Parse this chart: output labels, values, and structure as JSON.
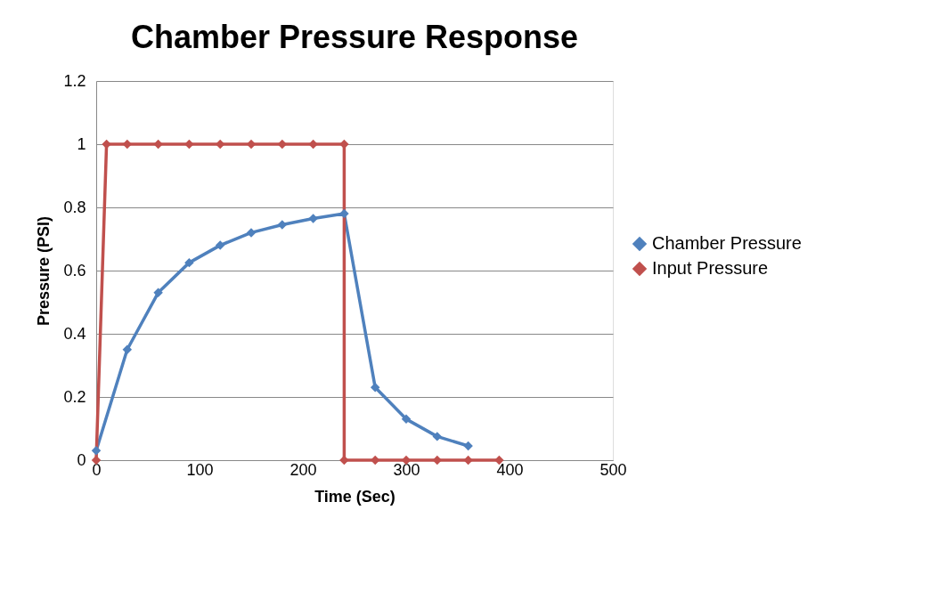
{
  "chart_data": {
    "type": "line",
    "title": "Chamber Pressure Response",
    "xlabel": "Time (Sec)",
    "ylabel": "Pressure (PSI)",
    "xlim": [
      0,
      500
    ],
    "xticks": [
      0,
      100,
      200,
      300,
      400,
      500
    ],
    "ylim": [
      0,
      1.2
    ],
    "yticks": [
      0,
      0.2,
      0.4,
      0.6,
      0.8,
      1,
      1.2
    ],
    "grid": "y",
    "legend": "right",
    "marker": "diamond",
    "line_style": "solid",
    "series": [
      {
        "name": "Chamber Pressure",
        "color": "#4f81bd",
        "x": [
          0,
          30,
          60,
          90,
          120,
          150,
          180,
          210,
          240,
          270,
          300,
          330,
          360
        ],
        "values": [
          0.03,
          0.35,
          0.53,
          0.625,
          0.68,
          0.72,
          0.745,
          0.765,
          0.78,
          0.23,
          0.13,
          0.075,
          0.045
        ]
      },
      {
        "name": "Input Pressure",
        "color": "#c0504d",
        "x": [
          0,
          10,
          30,
          60,
          90,
          120,
          150,
          180,
          210,
          240,
          240,
          270,
          300,
          330,
          360,
          390
        ],
        "values": [
          0,
          1,
          1,
          1,
          1,
          1,
          1,
          1,
          1,
          1,
          0,
          0,
          0,
          0,
          0,
          0
        ]
      }
    ]
  }
}
